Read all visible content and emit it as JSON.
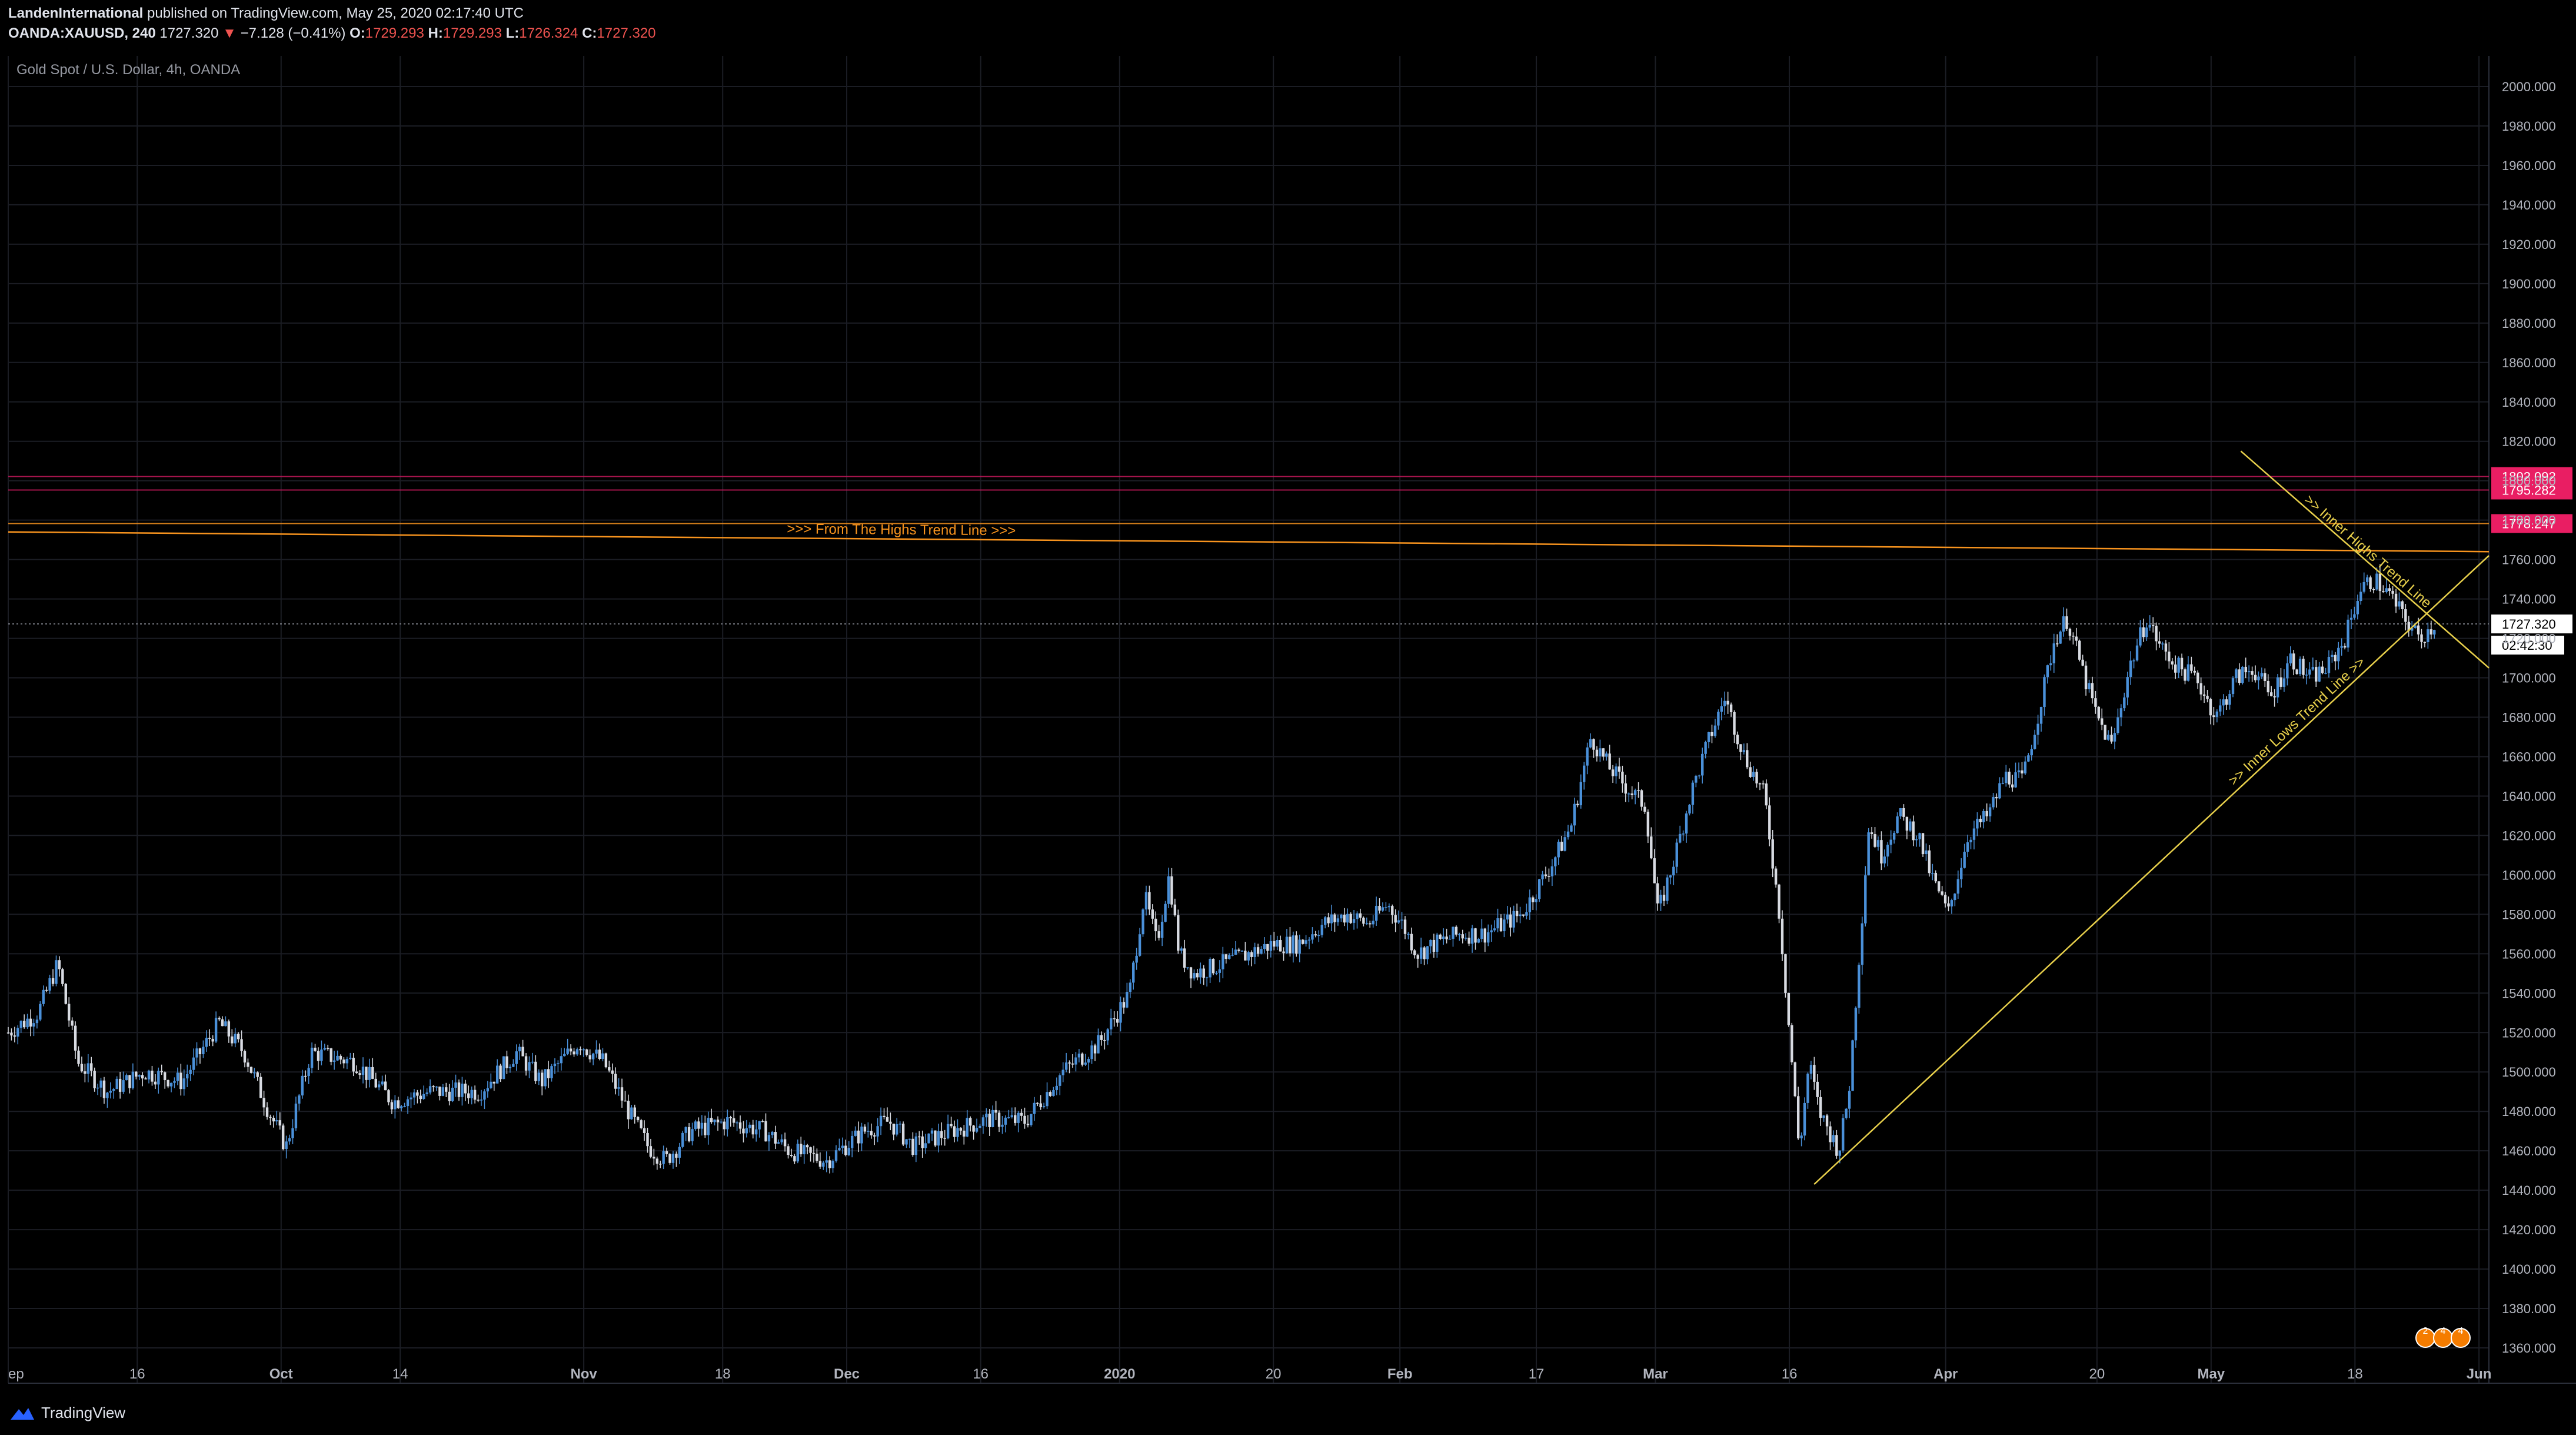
{
  "header": {
    "author": "LandenInternational",
    "published_text": "published on TradingView.com, May 25, 2020 02:17:40 UTC",
    "symbol": "OANDA:XAUUSD, 240",
    "last": "1727.320",
    "change_arrow": "▼",
    "change": "−7.128 (−0.41%)",
    "o_label": "O:",
    "o": "1729.293",
    "h_label": "H:",
    "h": "1729.293",
    "l_label": "L:",
    "l": "1726.324",
    "c_label": "C:",
    "c": "1727.320"
  },
  "pane_title": "Gold Spot / U.S. Dollar, 4h, OANDA",
  "watermark": "TradingView",
  "colors": {
    "background": "#000000",
    "grid": "#1b1d24",
    "candle_up": "#4a90d9",
    "candle_down": "#d8dbe2",
    "highs_trend": "#f7931e",
    "inner_lines": "#e7cf4b",
    "hline_red": "#c2185b",
    "hline_orange": "#f7931e",
    "price_badge": "#e91e63"
  },
  "chart_data": {
    "type": "candlestick",
    "ylim": [
      1350,
      2010
    ],
    "y_ticks": [
      "2000.000",
      "1980.000",
      "1960.000",
      "1940.000",
      "1920.000",
      "1900.000",
      "1880.000",
      "1860.000",
      "1840.000",
      "1820.000",
      "1800.000",
      "1780.000",
      "1760.000",
      "1740.000",
      "1720.000",
      "1700.000",
      "1680.000",
      "1660.000",
      "1640.000",
      "1620.000",
      "1600.000",
      "1580.000",
      "1560.000",
      "1540.000",
      "1520.000",
      "1500.000",
      "1480.000",
      "1460.000",
      "1440.000",
      "1420.000",
      "1400.000",
      "1380.000",
      "1360.000"
    ],
    "x_labels": [
      "ep",
      "16",
      "Oct",
      "14",
      "Nov",
      "18",
      "Dec",
      "16",
      "2020",
      "20",
      "Feb",
      "17",
      "Mar",
      "16",
      "Apr",
      "20",
      "May",
      "18",
      "Jun"
    ],
    "x_label_frac": [
      0.0,
      0.052,
      0.11,
      0.158,
      0.232,
      0.288,
      0.338,
      0.392,
      0.448,
      0.51,
      0.561,
      0.616,
      0.664,
      0.718,
      0.781,
      0.842,
      0.888,
      0.946,
      0.996
    ],
    "bold_labels": [
      "Oct",
      "Nov",
      "Dec",
      "2020",
      "Feb",
      "Mar",
      "Apr",
      "May",
      "Jun"
    ],
    "price_path": [
      [
        0.0,
        1520
      ],
      [
        0.012,
        1530
      ],
      [
        0.02,
        1555
      ],
      [
        0.028,
        1505
      ],
      [
        0.04,
        1490
      ],
      [
        0.055,
        1500
      ],
      [
        0.07,
        1495
      ],
      [
        0.085,
        1525
      ],
      [
        0.095,
        1510
      ],
      [
        0.105,
        1480
      ],
      [
        0.112,
        1462
      ],
      [
        0.122,
        1510
      ],
      [
        0.14,
        1505
      ],
      [
        0.155,
        1485
      ],
      [
        0.17,
        1490
      ],
      [
        0.19,
        1490
      ],
      [
        0.205,
        1510
      ],
      [
        0.215,
        1495
      ],
      [
        0.23,
        1515
      ],
      [
        0.24,
        1505
      ],
      [
        0.25,
        1480
      ],
      [
        0.258,
        1462
      ],
      [
        0.265,
        1455
      ],
      [
        0.275,
        1470
      ],
      [
        0.29,
        1475
      ],
      [
        0.305,
        1470
      ],
      [
        0.315,
        1460
      ],
      [
        0.33,
        1455
      ],
      [
        0.345,
        1470
      ],
      [
        0.355,
        1475
      ],
      [
        0.365,
        1462
      ],
      [
        0.38,
        1470
      ],
      [
        0.395,
        1476
      ],
      [
        0.41,
        1475
      ],
      [
        0.425,
        1500
      ],
      [
        0.44,
        1515
      ],
      [
        0.452,
        1540
      ],
      [
        0.458,
        1590
      ],
      [
        0.463,
        1565
      ],
      [
        0.468,
        1600
      ],
      [
        0.472,
        1560
      ],
      [
        0.478,
        1550
      ],
      [
        0.49,
        1555
      ],
      [
        0.5,
        1560
      ],
      [
        0.51,
        1565
      ],
      [
        0.52,
        1565
      ],
      [
        0.53,
        1575
      ],
      [
        0.54,
        1580
      ],
      [
        0.548,
        1575
      ],
      [
        0.556,
        1585
      ],
      [
        0.562,
        1575
      ],
      [
        0.568,
        1560
      ],
      [
        0.575,
        1565
      ],
      [
        0.585,
        1570
      ],
      [
        0.595,
        1570
      ],
      [
        0.61,
        1580
      ],
      [
        0.622,
        1605
      ],
      [
        0.63,
        1625
      ],
      [
        0.638,
        1670
      ],
      [
        0.645,
        1655
      ],
      [
        0.652,
        1645
      ],
      [
        0.66,
        1635
      ],
      [
        0.665,
        1580
      ],
      [
        0.672,
        1610
      ],
      [
        0.678,
        1640
      ],
      [
        0.686,
        1670
      ],
      [
        0.692,
        1690
      ],
      [
        0.7,
        1660
      ],
      [
        0.708,
        1640
      ],
      [
        0.714,
        1580
      ],
      [
        0.718,
        1520
      ],
      [
        0.722,
        1460
      ],
      [
        0.726,
        1505
      ],
      [
        0.73,
        1480
      ],
      [
        0.734,
        1470
      ],
      [
        0.738,
        1460
      ],
      [
        0.742,
        1490
      ],
      [
        0.745,
        1540
      ],
      [
        0.75,
        1625
      ],
      [
        0.755,
        1610
      ],
      [
        0.762,
        1630
      ],
      [
        0.77,
        1620
      ],
      [
        0.775,
        1600
      ],
      [
        0.782,
        1580
      ],
      [
        0.79,
        1620
      ],
      [
        0.798,
        1630
      ],
      [
        0.805,
        1650
      ],
      [
        0.812,
        1648
      ],
      [
        0.818,
        1680
      ],
      [
        0.825,
        1720
      ],
      [
        0.83,
        1730
      ],
      [
        0.837,
        1700
      ],
      [
        0.842,
        1680
      ],
      [
        0.848,
        1665
      ],
      [
        0.855,
        1705
      ],
      [
        0.862,
        1730
      ],
      [
        0.868,
        1715
      ],
      [
        0.875,
        1705
      ],
      [
        0.882,
        1700
      ],
      [
        0.89,
        1680
      ],
      [
        0.898,
        1700
      ],
      [
        0.905,
        1705
      ],
      [
        0.912,
        1690
      ],
      [
        0.92,
        1710
      ],
      [
        0.928,
        1700
      ],
      [
        0.935,
        1705
      ],
      [
        0.942,
        1720
      ],
      [
        0.948,
        1745
      ],
      [
        0.954,
        1750
      ],
      [
        0.96,
        1742
      ],
      [
        0.966,
        1730
      ],
      [
        0.972,
        1720
      ],
      [
        0.978,
        1727
      ]
    ],
    "trend_lines": [
      {
        "label": ">>> From The Highs Trend Line >>>",
        "from": [
          0.0,
          1774
        ],
        "to": [
          1.0,
          1764
        ],
        "color": "highs_trend"
      },
      {
        "label": ">> Inner Highs Trend Line",
        "from": [
          0.9,
          1815
        ],
        "to": [
          1.0,
          1705
        ],
        "color": "inner_lines"
      },
      {
        "label": ">> Inner Lows Trend Line >>",
        "from": [
          0.728,
          1443
        ],
        "to": [
          1.0,
          1762
        ],
        "color": "inner_lines"
      }
    ],
    "horizontal_lines": [
      {
        "price": 1802.092,
        "label": "1802.092",
        "color": "hline_red"
      },
      {
        "price": 1795.282,
        "label": "1795.282",
        "color": "hline_red"
      },
      {
        "price": 1778.247,
        "label": "1778.247",
        "color": "hline_orange"
      }
    ],
    "current_price": {
      "value": 1727.32,
      "label": "1727.320",
      "countdown": "02:42:30"
    },
    "calendar_badges": [
      "2",
      "4",
      "4"
    ]
  }
}
